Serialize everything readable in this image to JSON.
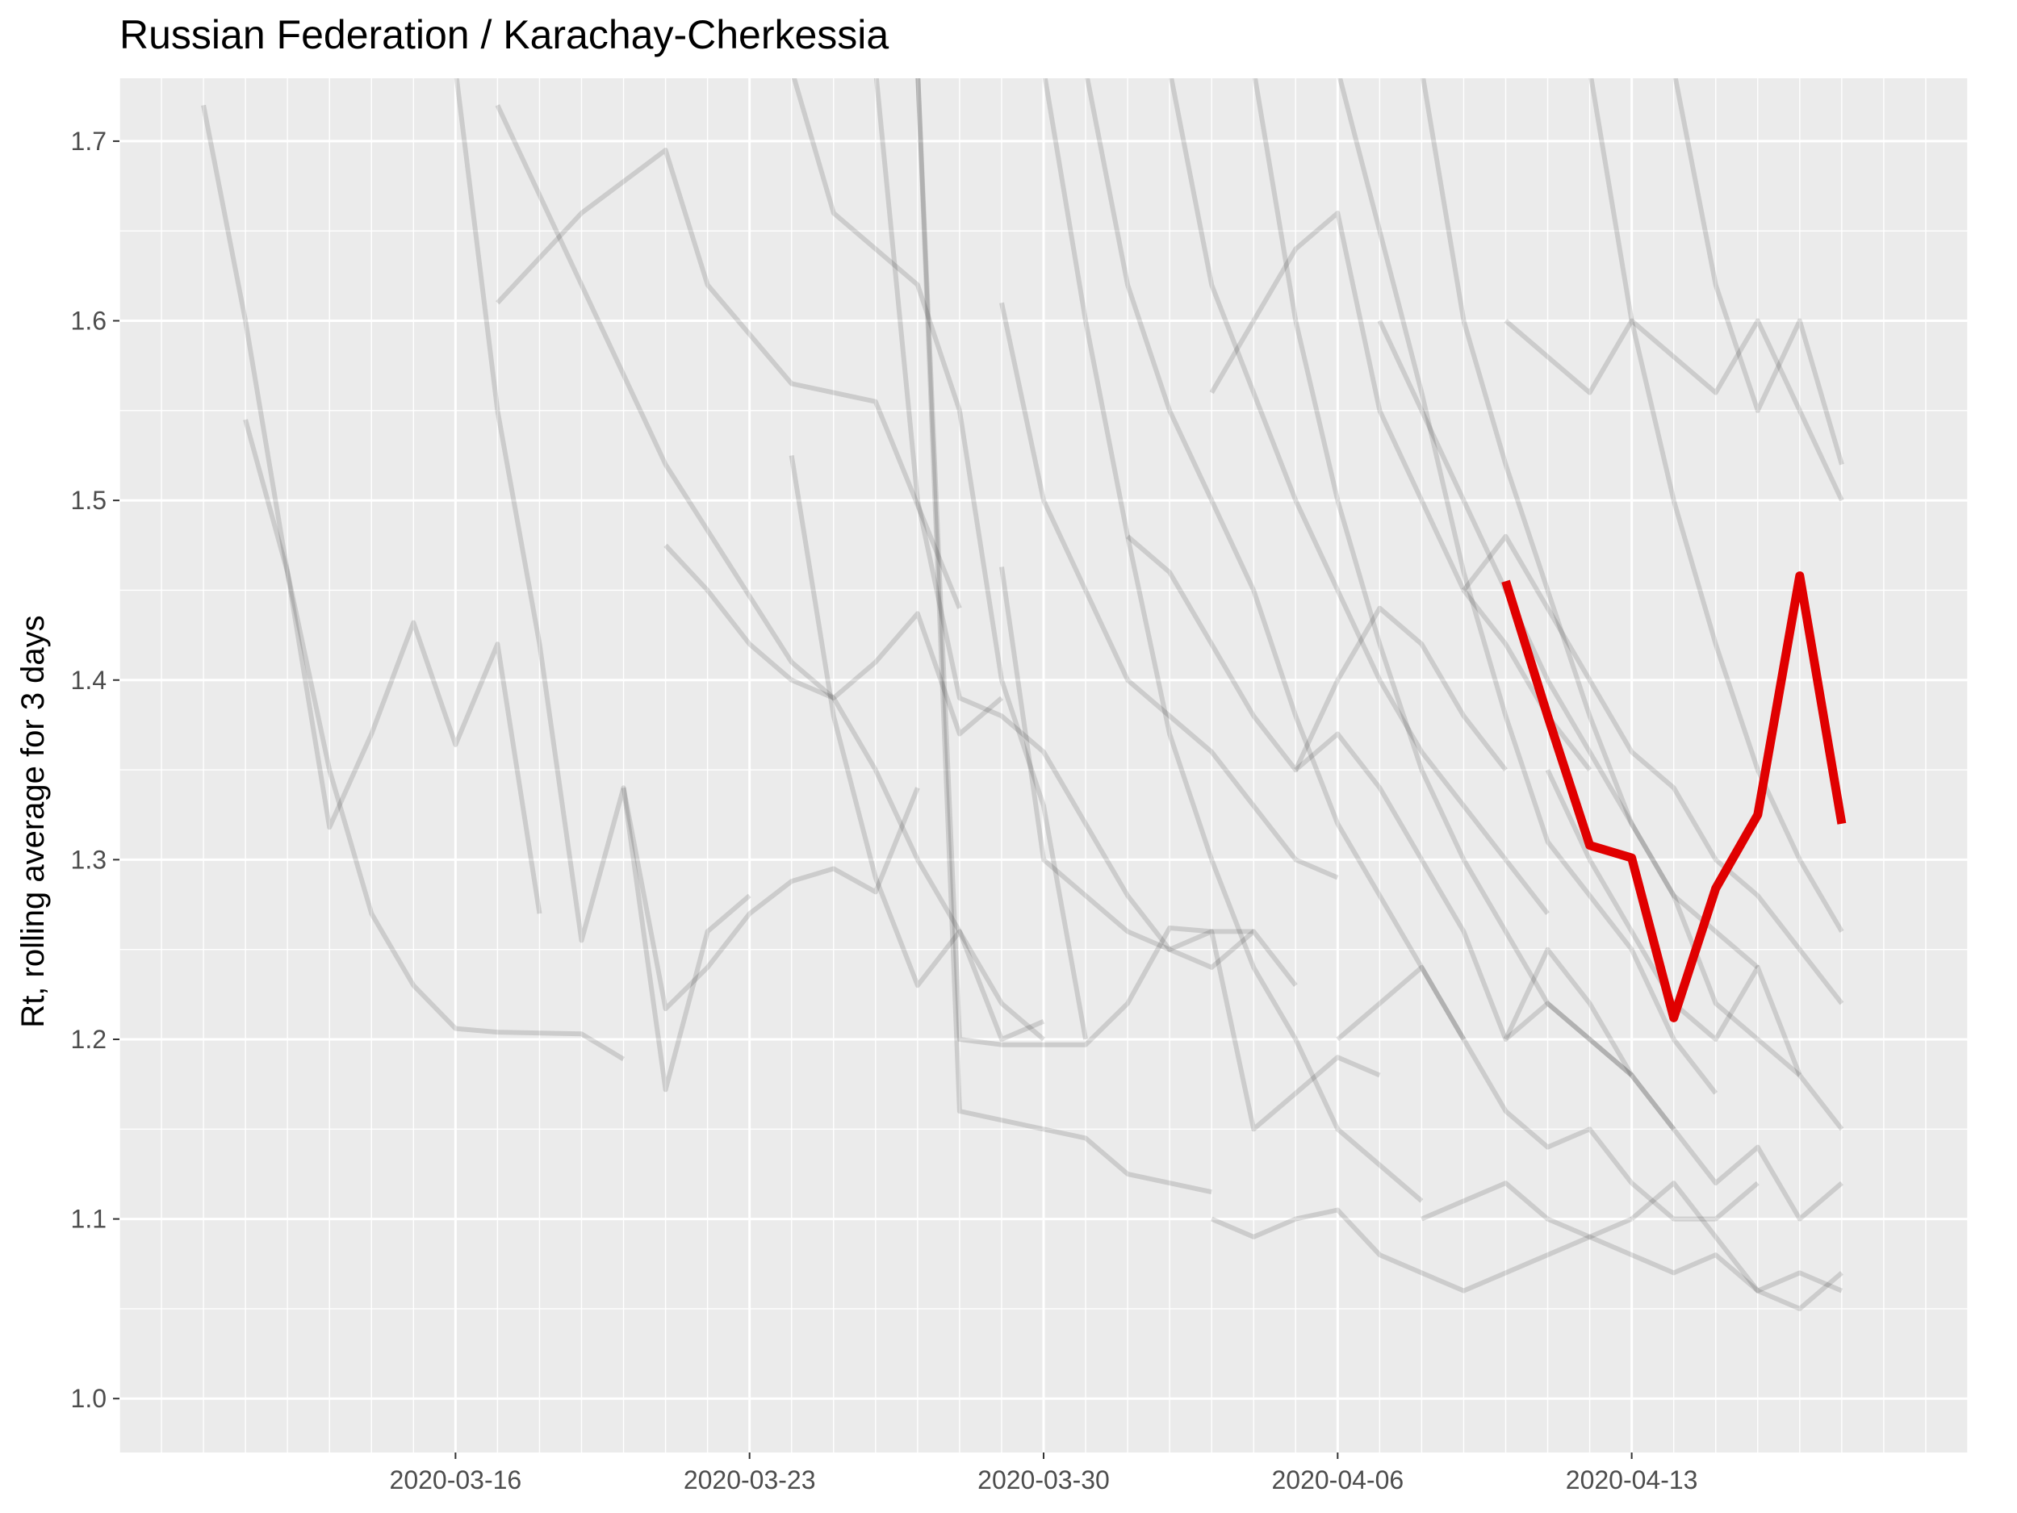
{
  "chart_data": {
    "type": "line",
    "title": "Russian Federation / Karachay-Cherkessia",
    "xlabel": "",
    "ylabel": "Rt, rolling average for 3 days",
    "x_axis": {
      "type": "date",
      "range": [
        "2020-03-08",
        "2020-04-21"
      ],
      "ticks": [
        "2020-03-16",
        "2020-03-23",
        "2020-03-30",
        "2020-04-06",
        "2020-04-13"
      ]
    },
    "y_axis": {
      "range": [
        0.97,
        1.735
      ],
      "ticks": [
        "1.0",
        "1.1",
        "1.2",
        "1.3",
        "1.4",
        "1.5",
        "1.6",
        "1.7"
      ]
    },
    "grid": true,
    "background_color": "#ebebeb",
    "grid_color": "#ffffff",
    "context_color": "#000000",
    "highlight_color": "#e00000",
    "highlight_series": {
      "x": [
        "2020-04-10",
        "2020-04-11",
        "2020-04-12",
        "2020-04-13",
        "2020-04-14",
        "2020-04-15",
        "2020-04-16",
        "2020-04-17",
        "2020-04-18"
      ],
      "y": [
        1.455,
        1.38,
        1.308,
        1.301,
        1.212,
        1.284,
        1.325,
        1.458,
        1.32
      ]
    },
    "context_series": [
      {
        "x": [
          "2020-03-10",
          "2020-03-11",
          "2020-03-12",
          "2020-03-13",
          "2020-03-14",
          "2020-03-15",
          "2020-03-16",
          "2020-03-17",
          "2020-03-19",
          "2020-03-20"
        ],
        "y": [
          1.72,
          1.6,
          1.46,
          1.35,
          1.27,
          1.23,
          1.206,
          1.204,
          1.203,
          1.189
        ]
      },
      {
        "x": [
          "2020-03-11",
          "2020-03-12",
          "2020-03-13",
          "2020-03-14",
          "2020-03-15",
          "2020-03-16",
          "2020-03-17",
          "2020-03-18"
        ],
        "y": [
          1.545,
          1.46,
          1.318,
          1.37,
          1.432,
          1.364,
          1.42,
          1.27
        ]
      },
      {
        "x": [
          "2020-03-16",
          "2020-03-17",
          "2020-03-18",
          "2020-03-19",
          "2020-03-20",
          "2020-03-21",
          "2020-03-22",
          "2020-03-23"
        ],
        "y": [
          1.74,
          1.55,
          1.42,
          1.255,
          1.34,
          1.172,
          1.26,
          1.28
        ]
      },
      {
        "x": [
          "2020-03-17",
          "2020-03-19",
          "2020-03-21",
          "2020-03-24",
          "2020-03-25",
          "2020-03-26",
          "2020-03-27",
          "2020-03-28",
          "2020-03-29",
          "2020-03-30"
        ],
        "y": [
          1.72,
          1.62,
          1.52,
          1.41,
          1.39,
          1.35,
          1.3,
          1.26,
          1.22,
          1.2
        ]
      },
      {
        "x": [
          "2020-03-17",
          "2020-03-19",
          "2020-03-21",
          "2020-03-22",
          "2020-03-24",
          "2020-03-25",
          "2020-03-26",
          "2020-03-28"
        ],
        "y": [
          1.61,
          1.66,
          1.695,
          1.62,
          1.565,
          1.56,
          1.555,
          1.44
        ]
      },
      {
        "x": [
          "2020-03-20",
          "2020-03-21",
          "2020-03-22",
          "2020-03-23",
          "2020-03-24",
          "2020-03-25",
          "2020-03-26",
          "2020-03-27"
        ],
        "y": [
          1.34,
          1.217,
          1.24,
          1.27,
          1.288,
          1.295,
          1.282,
          1.34
        ]
      },
      {
        "x": [
          "2020-03-21",
          "2020-03-22",
          "2020-03-23",
          "2020-03-24",
          "2020-03-25",
          "2020-03-26",
          "2020-03-27",
          "2020-03-28",
          "2020-03-29"
        ],
        "y": [
          1.475,
          1.45,
          1.42,
          1.4,
          1.39,
          1.41,
          1.437,
          1.37,
          1.39
        ]
      },
      {
        "x": [
          "2020-03-24",
          "2020-03-25",
          "2020-03-26",
          "2020-03-27",
          "2020-03-28",
          "2020-03-29",
          "2020-03-30"
        ],
        "y": [
          1.525,
          1.38,
          1.29,
          1.23,
          1.26,
          1.2,
          1.21
        ]
      },
      {
        "x": [
          "2020-03-24",
          "2020-03-25",
          "2020-03-26",
          "2020-03-27",
          "2020-03-28",
          "2020-03-29",
          "2020-03-30",
          "2020-03-31"
        ],
        "y": [
          1.74,
          1.66,
          1.64,
          1.62,
          1.55,
          1.4,
          1.33,
          1.2
        ]
      },
      {
        "x": [
          "2020-03-27",
          "2020-03-28",
          "2020-03-29",
          "2020-03-30",
          "2020-03-31",
          "2020-04-01",
          "2020-04-02",
          "2020-04-03"
        ],
        "y": [
          1.74,
          1.16,
          1.155,
          1.15,
          1.145,
          1.125,
          1.12,
          1.115
        ]
      },
      {
        "x": [
          "2020-03-27",
          "2020-03-28",
          "2020-03-29",
          "2020-03-30",
          "2020-03-31",
          "2020-04-01",
          "2020-04-02",
          "2020-04-03",
          "2020-04-04"
        ],
        "y": [
          1.74,
          1.2,
          1.197,
          1.197,
          1.197,
          1.22,
          1.262,
          1.26,
          1.26
        ]
      },
      {
        "x": [
          "2020-03-26",
          "2020-03-27",
          "2020-03-28",
          "2020-03-29",
          "2020-03-30",
          "2020-03-31",
          "2020-04-01",
          "2020-04-02",
          "2020-04-03",
          "2020-04-04",
          "2020-04-05"
        ],
        "y": [
          1.74,
          1.5,
          1.39,
          1.38,
          1.36,
          1.32,
          1.28,
          1.25,
          1.24,
          1.26,
          1.23
        ]
      },
      {
        "x": [
          "2020-03-29",
          "2020-03-30",
          "2020-03-31",
          "2020-04-01",
          "2020-04-02",
          "2020-04-03",
          "2020-04-04",
          "2020-04-05",
          "2020-04-06"
        ],
        "y": [
          1.61,
          1.5,
          1.45,
          1.4,
          1.38,
          1.36,
          1.33,
          1.3,
          1.29
        ]
      },
      {
        "x": [
          "2020-03-29",
          "2020-03-30",
          "2020-03-31",
          "2020-04-01",
          "2020-04-02",
          "2020-04-03",
          "2020-04-04",
          "2020-04-05",
          "2020-04-06",
          "2020-04-07"
        ],
        "y": [
          1.463,
          1.3,
          1.28,
          1.26,
          1.25,
          1.26,
          1.15,
          1.17,
          1.19,
          1.18
        ]
      },
      {
        "x": [
          "2020-03-30",
          "2020-03-31",
          "2020-04-01",
          "2020-04-02",
          "2020-04-03",
          "2020-04-04",
          "2020-04-05",
          "2020-04-06",
          "2020-04-07",
          "2020-04-08"
        ],
        "y": [
          1.74,
          1.6,
          1.48,
          1.37,
          1.3,
          1.24,
          1.2,
          1.15,
          1.13,
          1.11
        ]
      },
      {
        "x": [
          "2020-03-31",
          "2020-04-01",
          "2020-04-02",
          "2020-04-03",
          "2020-04-04",
          "2020-04-05",
          "2020-04-06",
          "2020-04-07",
          "2020-04-08",
          "2020-04-09"
        ],
        "y": [
          1.74,
          1.62,
          1.55,
          1.5,
          1.45,
          1.38,
          1.32,
          1.28,
          1.24,
          1.2
        ]
      },
      {
        "x": [
          "2020-04-01",
          "2020-04-02",
          "2020-04-03",
          "2020-04-04",
          "2020-04-05",
          "2020-04-06",
          "2020-04-07",
          "2020-04-08",
          "2020-04-09",
          "2020-04-10"
        ],
        "y": [
          1.48,
          1.46,
          1.42,
          1.38,
          1.35,
          1.4,
          1.44,
          1.42,
          1.38,
          1.35
        ]
      },
      {
        "x": [
          "2020-04-02",
          "2020-04-03",
          "2020-04-04",
          "2020-04-05",
          "2020-04-06",
          "2020-04-07",
          "2020-04-08",
          "2020-04-09",
          "2020-04-10",
          "2020-04-11"
        ],
        "y": [
          1.74,
          1.62,
          1.56,
          1.5,
          1.45,
          1.4,
          1.36,
          1.33,
          1.3,
          1.27
        ]
      },
      {
        "x": [
          "2020-04-03",
          "2020-04-04",
          "2020-04-05",
          "2020-04-06",
          "2020-04-07",
          "2020-04-08",
          "2020-04-09",
          "2020-04-10",
          "2020-04-11",
          "2020-04-12"
        ],
        "y": [
          1.56,
          1.6,
          1.64,
          1.66,
          1.55,
          1.5,
          1.45,
          1.42,
          1.38,
          1.35
        ]
      },
      {
        "x": [
          "2020-04-03",
          "2020-04-04",
          "2020-04-05",
          "2020-04-06",
          "2020-04-07",
          "2020-04-08",
          "2020-04-09",
          "2020-04-10",
          "2020-04-11",
          "2020-04-12",
          "2020-04-13"
        ],
        "y": [
          1.1,
          1.09,
          1.1,
          1.105,
          1.08,
          1.07,
          1.06,
          1.07,
          1.08,
          1.09,
          1.1
        ]
      },
      {
        "x": [
          "2020-04-04",
          "2020-04-05",
          "2020-04-06",
          "2020-04-07",
          "2020-04-08",
          "2020-04-09",
          "2020-04-10",
          "2020-04-11",
          "2020-04-12",
          "2020-04-13"
        ],
        "y": [
          1.74,
          1.6,
          1.5,
          1.42,
          1.35,
          1.3,
          1.26,
          1.22,
          1.2,
          1.18
        ]
      },
      {
        "x": [
          "2020-04-05",
          "2020-04-06",
          "2020-04-07",
          "2020-04-08",
          "2020-04-09",
          "2020-04-10",
          "2020-04-11",
          "2020-04-12",
          "2020-04-13",
          "2020-04-14"
        ],
        "y": [
          1.35,
          1.37,
          1.34,
          1.3,
          1.26,
          1.2,
          1.22,
          1.2,
          1.18,
          1.15
        ]
      },
      {
        "x": [
          "2020-04-06",
          "2020-04-07",
          "2020-04-08",
          "2020-04-09",
          "2020-04-10",
          "2020-04-11",
          "2020-04-12",
          "2020-04-13",
          "2020-04-14",
          "2020-04-15"
        ],
        "y": [
          1.74,
          1.65,
          1.56,
          1.46,
          1.38,
          1.31,
          1.28,
          1.25,
          1.2,
          1.17
        ]
      },
      {
        "x": [
          "2020-04-06",
          "2020-04-07",
          "2020-04-08",
          "2020-04-09",
          "2020-04-10",
          "2020-04-11",
          "2020-04-12",
          "2020-04-13",
          "2020-04-14",
          "2020-04-15",
          "2020-04-16"
        ],
        "y": [
          1.2,
          1.22,
          1.24,
          1.2,
          1.16,
          1.14,
          1.15,
          1.12,
          1.1,
          1.1,
          1.12
        ]
      },
      {
        "x": [
          "2020-04-07",
          "2020-04-08",
          "2020-04-09",
          "2020-04-10",
          "2020-04-11",
          "2020-04-12",
          "2020-04-13",
          "2020-04-14",
          "2020-04-15",
          "2020-04-16"
        ],
        "y": [
          1.6,
          1.55,
          1.5,
          1.45,
          1.4,
          1.36,
          1.32,
          1.28,
          1.26,
          1.24
        ]
      },
      {
        "x": [
          "2020-04-08",
          "2020-04-09",
          "2020-04-10",
          "2020-04-11",
          "2020-04-12",
          "2020-04-13",
          "2020-04-14",
          "2020-04-15",
          "2020-04-16",
          "2020-04-17"
        ],
        "y": [
          1.74,
          1.6,
          1.52,
          1.45,
          1.38,
          1.32,
          1.28,
          1.22,
          1.2,
          1.18
        ]
      },
      {
        "x": [
          "2020-04-08",
          "2020-04-09",
          "2020-04-10",
          "2020-04-11",
          "2020-04-12",
          "2020-04-13",
          "2020-04-14",
          "2020-04-15",
          "2020-04-16",
          "2020-04-17",
          "2020-04-18"
        ],
        "y": [
          1.1,
          1.11,
          1.12,
          1.1,
          1.09,
          1.08,
          1.07,
          1.08,
          1.06,
          1.07,
          1.06
        ]
      },
      {
        "x": [
          "2020-04-09",
          "2020-04-10",
          "2020-04-11",
          "2020-04-12",
          "2020-04-13",
          "2020-04-14",
          "2020-04-15",
          "2020-04-16",
          "2020-04-17",
          "2020-04-18"
        ],
        "y": [
          1.45,
          1.48,
          1.44,
          1.4,
          1.36,
          1.34,
          1.3,
          1.28,
          1.25,
          1.22
        ]
      },
      {
        "x": [
          "2020-04-10",
          "2020-04-11",
          "2020-04-12",
          "2020-04-13",
          "2020-04-14",
          "2020-04-15",
          "2020-04-16",
          "2020-04-17",
          "2020-04-18"
        ],
        "y": [
          1.6,
          1.58,
          1.56,
          1.6,
          1.58,
          1.56,
          1.6,
          1.55,
          1.5
        ]
      },
      {
        "x": [
          "2020-04-10",
          "2020-04-11",
          "2020-04-12",
          "2020-04-13",
          "2020-04-14",
          "2020-04-15",
          "2020-04-16",
          "2020-04-17",
          "2020-04-18"
        ],
        "y": [
          1.2,
          1.25,
          1.22,
          1.18,
          1.15,
          1.12,
          1.14,
          1.1,
          1.12
        ]
      },
      {
        "x": [
          "2020-04-11",
          "2020-04-12",
          "2020-04-13",
          "2020-04-14",
          "2020-04-15",
          "2020-04-16",
          "2020-04-17",
          "2020-04-18"
        ],
        "y": [
          1.35,
          1.3,
          1.26,
          1.22,
          1.2,
          1.24,
          1.18,
          1.15
        ]
      },
      {
        "x": [
          "2020-04-12",
          "2020-04-13",
          "2020-04-14",
          "2020-04-15",
          "2020-04-16",
          "2020-04-17",
          "2020-04-18"
        ],
        "y": [
          1.74,
          1.6,
          1.5,
          1.42,
          1.35,
          1.3,
          1.26
        ]
      },
      {
        "x": [
          "2020-04-13",
          "2020-04-14",
          "2020-04-15",
          "2020-04-16",
          "2020-04-17",
          "2020-04-18"
        ],
        "y": [
          1.1,
          1.12,
          1.09,
          1.06,
          1.05,
          1.07
        ]
      },
      {
        "x": [
          "2020-04-14",
          "2020-04-15",
          "2020-04-16",
          "2020-04-17",
          "2020-04-18"
        ],
        "y": [
          1.74,
          1.62,
          1.55,
          1.6,
          1.52
        ]
      }
    ]
  }
}
